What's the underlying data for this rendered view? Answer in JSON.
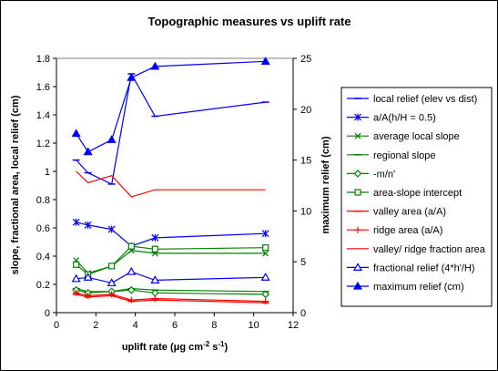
{
  "chart_data": {
    "type": "line",
    "title": "Topographic measures vs uplift rate",
    "xlabel_parts": {
      "main": "uplift rate (",
      "mu": "μ",
      "g": "g cm",
      "exp1": "-2",
      "s": " s",
      "exp2": "-1",
      "close": ")"
    },
    "ylabel_left": "slope, fractional area, local relief (cm)",
    "ylabel_right": "maximum relief (cm)",
    "x_ticks": [
      "0",
      "2",
      "4",
      "6",
      "8",
      "10",
      "12"
    ],
    "y_left_ticks": [
      "0",
      "0.2",
      "0.4",
      "0.6",
      "0.8",
      "1",
      "1.2",
      "1.4",
      "1.6",
      "1.8"
    ],
    "y_right_ticks": [
      "0",
      "5",
      "10",
      "15",
      "20",
      "25"
    ],
    "xlim": [
      0,
      12
    ],
    "ylim_left": [
      0,
      1.8
    ],
    "ylim_right": [
      0,
      25
    ],
    "grid": false,
    "legend_position": "right",
    "series": [
      {
        "name": "local relief (elev vs dist)",
        "axis": "left",
        "color": "#0000ff",
        "marker": "dash",
        "x": [
          1,
          1.6,
          2.8,
          3.8,
          5,
          10.6
        ],
        "y": [
          1.08,
          0.99,
          0.91,
          1.69,
          1.39,
          1.49
        ]
      },
      {
        "name": "a/A(h/H = 0.5)",
        "axis": "left",
        "color": "#0000ff",
        "marker": "asterisk",
        "x": [
          1,
          1.6,
          2.8,
          3.8,
          5,
          10.6
        ],
        "y": [
          0.64,
          0.62,
          0.59,
          0.47,
          0.53,
          0.56
        ]
      },
      {
        "name": "average local slope",
        "axis": "left",
        "color": "#008000",
        "marker": "x",
        "x": [
          1,
          1.6,
          2.8,
          3.8,
          5,
          10.6
        ],
        "y": [
          0.37,
          0.28,
          0.33,
          0.44,
          0.42,
          0.42
        ]
      },
      {
        "name": "regional slope",
        "axis": "left",
        "color": "#008000",
        "marker": "dash",
        "x": [
          1,
          1.6,
          2.8,
          3.8,
          5,
          10.6
        ],
        "y": [
          0.17,
          0.15,
          0.15,
          0.17,
          0.16,
          0.15
        ]
      },
      {
        "name": "-m/n'",
        "axis": "left",
        "color": "#008000",
        "marker": "diamond",
        "x": [
          1,
          1.6,
          2.8,
          3.8,
          5,
          10.6
        ],
        "y": [
          0.16,
          0.14,
          0.15,
          0.16,
          0.14,
          0.13
        ]
      },
      {
        "name": "area-slope intercept",
        "axis": "left",
        "color": "#008000",
        "marker": "square",
        "x": [
          1,
          1.6,
          2.8,
          3.8,
          5,
          10.6
        ],
        "y": [
          0.34,
          0.27,
          0.33,
          0.47,
          0.45,
          0.46
        ]
      },
      {
        "name": "valley area (a/A)",
        "axis": "left",
        "color": "#ff0000",
        "marker": "dash",
        "x": [
          1,
          1.6,
          2.8,
          3.8,
          5,
          10.6
        ],
        "y": [
          0.13,
          0.11,
          0.12,
          0.08,
          0.09,
          0.07
        ]
      },
      {
        "name": "ridge area (a/A)",
        "axis": "left",
        "color": "#ff0000",
        "marker": "plus",
        "x": [
          1,
          1.6,
          2.8,
          3.8,
          5,
          10.6
        ],
        "y": [
          0.14,
          0.12,
          0.13,
          0.09,
          0.1,
          0.08
        ]
      },
      {
        "name": "valley/ ridge fraction area",
        "axis": "left",
        "color": "#ff0000",
        "marker": "none",
        "x": [
          1,
          1.6,
          2.8,
          3.8,
          5,
          10.6
        ],
        "y": [
          1.0,
          0.92,
          0.97,
          0.82,
          0.87,
          0.87
        ]
      },
      {
        "name": "fractional relief (4*h'/H)",
        "axis": "left",
        "color": "#0000ff",
        "marker": "triangle-open",
        "x": [
          1,
          1.6,
          2.8,
          3.8,
          5,
          10.6
        ],
        "y": [
          0.24,
          0.25,
          0.21,
          0.29,
          0.23,
          0.25
        ]
      },
      {
        "name": "maximum relief (cm)",
        "axis": "right",
        "color": "#0000ff",
        "marker": "triangle-filled",
        "x": [
          1,
          1.6,
          2.8,
          3.8,
          5,
          10.6
        ],
        "y": [
          17.6,
          15.8,
          17.0,
          23.1,
          24.2,
          24.7
        ]
      }
    ]
  }
}
